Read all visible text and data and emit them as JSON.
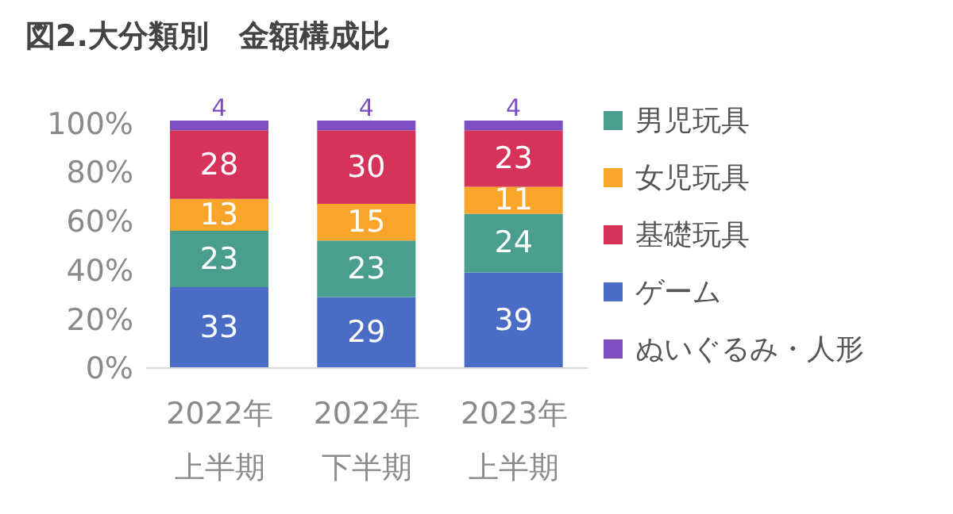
{
  "chart_data": {
    "type": "bar",
    "title": "図2.大分類別　金額構成比",
    "categories": [
      "2022年上半期",
      "2022年下半期",
      "2023年上半期"
    ],
    "stacked": true,
    "data_labels": true,
    "legend": "right",
    "grid": false,
    "ylim": [
      0,
      101
    ],
    "yticks": [
      {
        "value": 0,
        "label": "0%"
      },
      {
        "value": 20,
        "label": "20%"
      },
      {
        "value": 40,
        "label": "40%"
      },
      {
        "value": 60,
        "label": "60%"
      },
      {
        "value": 80,
        "label": "80%"
      },
      {
        "value": 100,
        "label": "100%"
      }
    ],
    "series": [
      {
        "name": "ゲーム",
        "color": "#4a6cc4",
        "values": [
          33,
          29,
          39
        ]
      },
      {
        "name": "男児玩具",
        "color": "#4a9e8e",
        "values": [
          23,
          23,
          24
        ]
      },
      {
        "name": "女児玩具",
        "color": "#f9a42a",
        "values": [
          13,
          15,
          11
        ]
      },
      {
        "name": "基礎玩具",
        "color": "#d6335a",
        "values": [
          28,
          30,
          23
        ]
      },
      {
        "name": "ぬいぐるみ・人形",
        "color": "#7e4fc0",
        "values": [
          4,
          4,
          4
        ]
      }
    ]
  }
}
